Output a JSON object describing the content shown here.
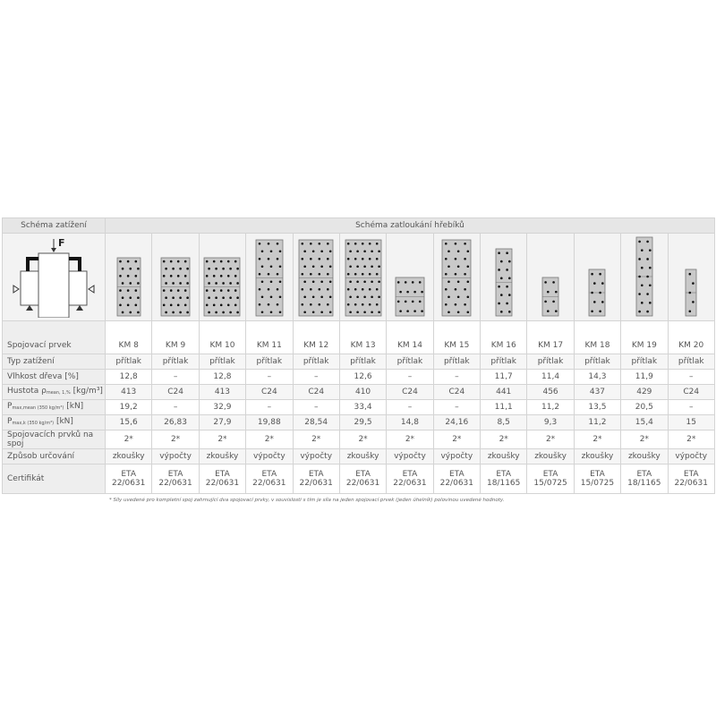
{
  "header": {
    "left": "Schéma zatížení",
    "right": "Schéma zatloukání hřebíků"
  },
  "load_scheme": {
    "force_label": "F"
  },
  "table": {
    "rows": [
      {
        "label": {
          "main": "Spojovací prvek"
        },
        "values": [
          "KM 8",
          "KM 9",
          "KM 10",
          "KM 11",
          "KM 12",
          "KM 13",
          "KM 14",
          "KM 15",
          "KM 16",
          "KM 17",
          "KM 18",
          "KM 19",
          "KM 20"
        ]
      },
      {
        "label": {
          "main": "Typ zatížení"
        },
        "values": [
          "přítlak",
          "přítlak",
          "přítlak",
          "přítlak",
          "přítlak",
          "přítlak",
          "přítlak",
          "přítlak",
          "přítlak",
          "přítlak",
          "přítlak",
          "přítlak",
          "přítlak"
        ]
      },
      {
        "label": {
          "main": "Vlhkost dřeva [%]"
        },
        "values": [
          "12,8",
          "–",
          "12,8",
          "–",
          "–",
          "12,6",
          "–",
          "–",
          "11,7",
          "11,4",
          "14,3",
          "11,9",
          "–"
        ]
      },
      {
        "label": {
          "main": "Hustota ρ",
          "sub": "mean, 1,%",
          "tail": " [kg/m³]"
        },
        "values": [
          "413",
          "C24",
          "413",
          "C24",
          "C24",
          "410",
          "C24",
          "C24",
          "441",
          "456",
          "437",
          "429",
          "C24"
        ]
      },
      {
        "label": {
          "main": "P",
          "sub": "max,mean (350 kg/m³)",
          "tail": " [kN]"
        },
        "values": [
          "19,2",
          "–",
          "32,9",
          "–",
          "–",
          "33,4",
          "–",
          "–",
          "11,1",
          "11,2",
          "13,5",
          "20,5",
          "–"
        ]
      },
      {
        "label": {
          "main": "P",
          "sub": "max,k (350 kg/m³)",
          "tail": " [kN]"
        },
        "values": [
          "15,6",
          "26,83",
          "27,9",
          "19,88",
          "28,54",
          "29,5",
          "14,8",
          "24,16",
          "8,5",
          "9,3",
          "11,2",
          "15,4",
          "15"
        ]
      },
      {
        "label": {
          "main": "Spojovacích prvků na spoj"
        },
        "values": [
          "2*",
          "2*",
          "2*",
          "2*",
          "2*",
          "2*",
          "2*",
          "2*",
          "2*",
          "2*",
          "2*",
          "2*",
          "2*"
        ]
      },
      {
        "label": {
          "main": "Způsob určování"
        },
        "values": [
          "zkoušky",
          "výpočty",
          "zkoušky",
          "výpočty",
          "výpočty",
          "zkoušky",
          "výpočty",
          "výpočty",
          "zkoušky",
          "zkoušky",
          "zkoušky",
          "zkoušky",
          "výpočty"
        ]
      },
      {
        "label": {
          "main": "Certifikát"
        },
        "values": [
          "ETA\n22/0631",
          "ETA\n22/0631",
          "ETA\n22/0631",
          "ETA\n22/0631",
          "ETA\n22/0631",
          "ETA\n22/0631",
          "ETA\n22/0631",
          "ETA\n22/0631",
          "ETA\n18/1165",
          "ETA\n15/0725",
          "ETA\n15/0725",
          "ETA\n18/1165",
          "ETA\n22/0631"
        ]
      }
    ]
  },
  "footnote": "* Síly uvedené pro kompletní spoj zahrnující dva spojovací prvky, v souvislosti s tím je síla na jeden spojovací prvek (jeden úhelník) polovinou uvedené hodnoty."
}
